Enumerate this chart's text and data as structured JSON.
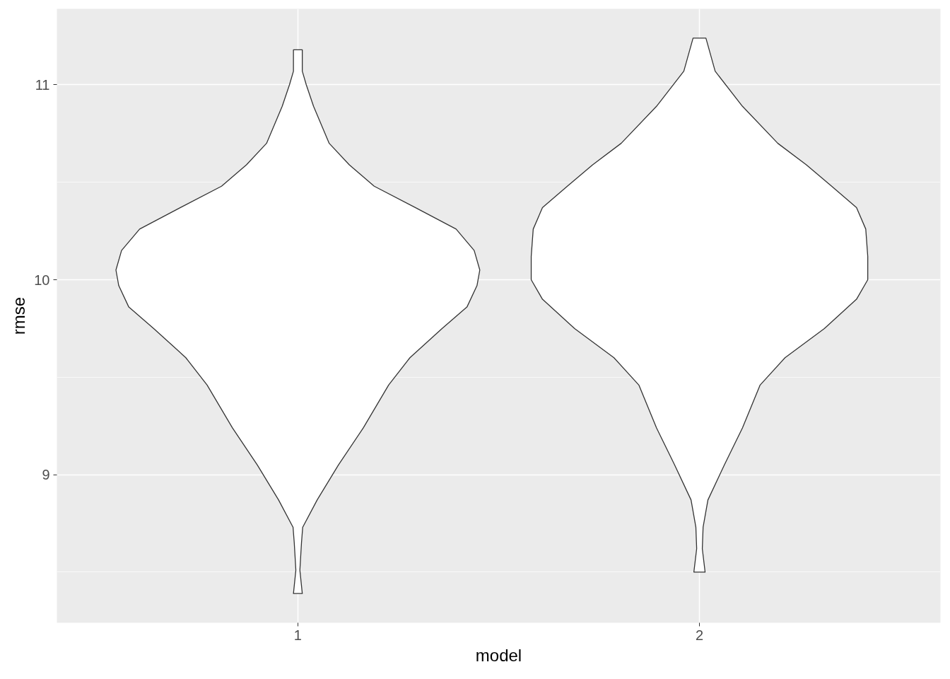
{
  "chart_data": {
    "type": "area",
    "xlabel": "model",
    "ylabel": "rmse",
    "xlim": [
      0.4,
      2.6
    ],
    "xticks": [
      1,
      2
    ],
    "ylim": [
      8.24,
      11.39
    ],
    "yticks": [
      9,
      10,
      11
    ],
    "grid": true,
    "series": [
      {
        "color": "#333333",
        "x": [
          1.011,
          1.011,
          1.021,
          1.039,
          1.078,
          1.128,
          1.19,
          1.293,
          1.394,
          1.439,
          1.453,
          1.446,
          1.421,
          1.359,
          1.279,
          1.226,
          1.163,
          1.101,
          1.048,
          1.012,
          1.009,
          1.005,
          1.011,
          0.989,
          0.995,
          0.991,
          0.988,
          0.952,
          0.899,
          0.837,
          0.774,
          0.721,
          0.641,
          0.579,
          0.554,
          0.547,
          0.561,
          0.606,
          0.707,
          0.81,
          0.872,
          0.922,
          0.961,
          0.979,
          0.989,
          0.989,
          1.011
        ],
        "values": [
          11.18,
          11.07,
          11.0,
          10.89,
          10.7,
          10.59,
          10.48,
          10.37,
          10.26,
          10.15,
          10.05,
          9.97,
          9.86,
          9.75,
          9.6,
          9.46,
          9.24,
          9.05,
          8.87,
          8.73,
          8.65,
          8.51,
          8.39,
          8.39,
          8.51,
          8.65,
          8.73,
          8.87,
          9.05,
          9.24,
          9.46,
          9.6,
          9.75,
          9.86,
          9.97,
          10.05,
          10.15,
          10.26,
          10.37,
          10.48,
          10.59,
          10.7,
          10.89,
          11.0,
          11.07,
          11.18,
          11.18
        ]
      },
      {
        "color": "#333333",
        "x": [
          2.016,
          2.039,
          2.107,
          2.195,
          2.266,
          2.329,
          2.391,
          2.414,
          2.419,
          2.419,
          2.391,
          2.311,
          2.213,
          2.151,
          2.107,
          2.062,
          2.021,
          2.009,
          2.007,
          2.014,
          1.986,
          1.993,
          1.991,
          1.979,
          1.938,
          1.893,
          1.849,
          1.787,
          1.689,
          1.609,
          1.581,
          1.581,
          1.586,
          1.609,
          1.671,
          1.734,
          1.805,
          1.893,
          1.961,
          1.984,
          2.016
        ],
        "values": [
          11.24,
          11.07,
          10.89,
          10.7,
          10.59,
          10.48,
          10.37,
          10.26,
          10.12,
          10.0,
          9.9,
          9.75,
          9.6,
          9.46,
          9.24,
          9.05,
          8.87,
          8.73,
          8.62,
          8.5,
          8.5,
          8.62,
          8.73,
          8.87,
          9.05,
          9.24,
          9.46,
          9.6,
          9.75,
          9.9,
          10.0,
          10.12,
          10.26,
          10.37,
          10.48,
          10.59,
          10.7,
          10.89,
          11.07,
          11.24,
          11.24
        ]
      }
    ]
  }
}
